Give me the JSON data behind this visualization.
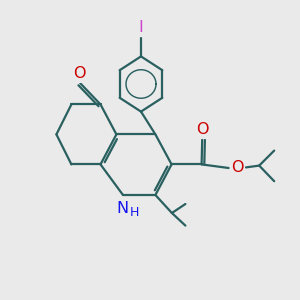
{
  "bg_color": "#eaeaea",
  "bond_color": "#2a6060",
  "bond_width": 1.6,
  "N_color": "#1515ee",
  "O_color": "#cc0000",
  "I_color": "#cc44cc",
  "font_size": 9.5,
  "figsize": [
    3.0,
    3.0
  ],
  "dpi": 100,
  "xlim": [
    0,
    10
  ],
  "ylim": [
    0,
    10
  ]
}
